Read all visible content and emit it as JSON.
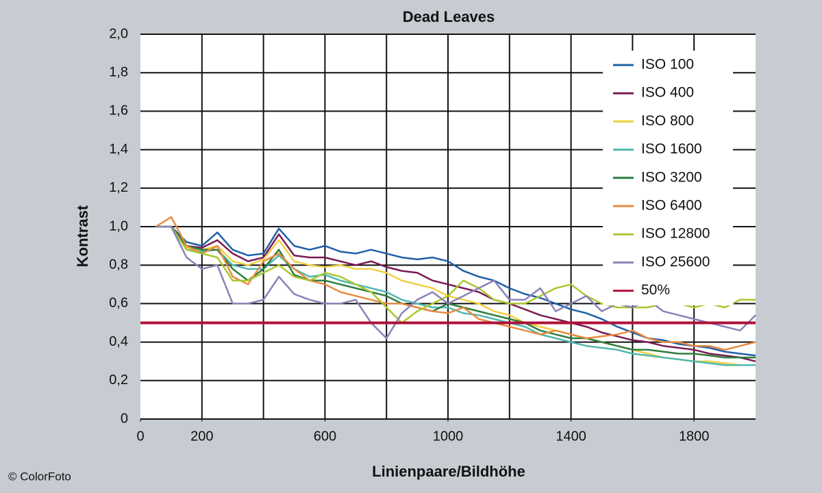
{
  "chart_data": {
    "type": "line",
    "title": "Dead Leaves",
    "xlabel": "Linienpaare/Bildhöhe",
    "ylabel": "Kontrast",
    "credit": "© ColorFoto",
    "xlim": [
      0,
      2000
    ],
    "ylim": [
      0,
      2
    ],
    "xticks": [
      0,
      200,
      600,
      1000,
      1400,
      1800
    ],
    "xgrid": [
      200,
      400,
      600,
      800,
      1000,
      1200,
      1400,
      1600,
      1800
    ],
    "yticks": [
      0,
      {
        "value": 0.2,
        "label": "0,2"
      },
      {
        "value": 0.4,
        "label": "0,4"
      },
      {
        "value": 0.6,
        "label": "0,6"
      },
      {
        "value": 0.8,
        "label": "0,8"
      },
      {
        "value": 1,
        "label": "1,0"
      },
      {
        "value": 1.2,
        "label": "1,2"
      },
      {
        "value": 1.4,
        "label": "1,4"
      },
      {
        "value": 1.6,
        "label": "1,6"
      },
      {
        "value": 1.8,
        "label": "1,8"
      },
      {
        "value": 2,
        "label": "2,0"
      }
    ],
    "grid": true,
    "legend": "upper right",
    "x": [
      50,
      100,
      150,
      200,
      250,
      300,
      350,
      400,
      450,
      500,
      550,
      600,
      650,
      700,
      750,
      800,
      850,
      900,
      950,
      1000,
      1050,
      1100,
      1150,
      1200,
      1250,
      1300,
      1350,
      1400,
      1450,
      1500,
      1550,
      1600,
      1650,
      1700,
      1750,
      1800,
      1850,
      1900,
      1950,
      2000
    ],
    "series": [
      {
        "name": "ISO 100",
        "color": "#1f5fa8",
        "values": [
          1.0,
          1.0,
          0.92,
          0.9,
          0.97,
          0.88,
          0.85,
          0.86,
          0.99,
          0.9,
          0.88,
          0.9,
          0.87,
          0.86,
          0.88,
          0.86,
          0.84,
          0.83,
          0.84,
          0.82,
          0.77,
          0.74,
          0.72,
          0.68,
          0.65,
          0.63,
          0.6,
          0.57,
          0.55,
          0.52,
          0.48,
          0.45,
          0.42,
          0.41,
          0.39,
          0.38,
          0.37,
          0.35,
          0.34,
          0.33
        ]
      },
      {
        "name": "ISO 400",
        "color": "#7a1a55",
        "values": [
          1.0,
          1.0,
          0.9,
          0.89,
          0.93,
          0.86,
          0.82,
          0.84,
          0.96,
          0.85,
          0.84,
          0.84,
          0.82,
          0.8,
          0.82,
          0.79,
          0.77,
          0.76,
          0.72,
          0.7,
          0.68,
          0.66,
          0.62,
          0.6,
          0.57,
          0.54,
          0.52,
          0.5,
          0.48,
          0.45,
          0.43,
          0.41,
          0.4,
          0.38,
          0.37,
          0.36,
          0.34,
          0.33,
          0.32,
          0.3
        ]
      },
      {
        "name": "ISO 800",
        "color": "#f0d040",
        "values": [
          1.0,
          1.0,
          0.89,
          0.88,
          0.9,
          0.82,
          0.8,
          0.83,
          0.93,
          0.82,
          0.8,
          0.79,
          0.8,
          0.78,
          0.78,
          0.76,
          0.72,
          0.7,
          0.68,
          0.64,
          0.62,
          0.6,
          0.56,
          0.54,
          0.5,
          0.48,
          0.46,
          0.44,
          0.42,
          0.4,
          0.38,
          0.36,
          0.34,
          0.32,
          0.31,
          0.3,
          0.3,
          0.29,
          0.28,
          0.28
        ]
      },
      {
        "name": "ISO 1600",
        "color": "#50b8b0",
        "values": [
          1.0,
          1.0,
          0.88,
          0.87,
          0.88,
          0.8,
          0.78,
          0.78,
          0.85,
          0.78,
          0.74,
          0.75,
          0.72,
          0.7,
          0.68,
          0.66,
          0.62,
          0.6,
          0.58,
          0.58,
          0.55,
          0.54,
          0.52,
          0.5,
          0.48,
          0.44,
          0.42,
          0.4,
          0.38,
          0.37,
          0.36,
          0.34,
          0.33,
          0.32,
          0.31,
          0.3,
          0.29,
          0.28,
          0.28,
          0.28
        ]
      },
      {
        "name": "ISO 3200",
        "color": "#2e7d3e",
        "values": [
          1.0,
          1.0,
          0.9,
          0.88,
          0.88,
          0.78,
          0.72,
          0.78,
          0.88,
          0.75,
          0.72,
          0.72,
          0.7,
          0.68,
          0.66,
          0.64,
          0.6,
          0.58,
          0.56,
          0.6,
          0.58,
          0.56,
          0.54,
          0.52,
          0.5,
          0.46,
          0.44,
          0.42,
          0.42,
          0.4,
          0.38,
          0.36,
          0.36,
          0.35,
          0.34,
          0.34,
          0.33,
          0.32,
          0.32,
          0.32
        ]
      },
      {
        "name": "ISO 6400",
        "color": "#e88b40",
        "values": [
          1.0,
          1.05,
          0.9,
          0.86,
          0.9,
          0.74,
          0.7,
          0.82,
          0.86,
          0.78,
          0.72,
          0.7,
          0.66,
          0.64,
          0.62,
          0.6,
          0.6,
          0.58,
          0.56,
          0.55,
          0.58,
          0.52,
          0.5,
          0.48,
          0.46,
          0.44,
          0.46,
          0.44,
          0.42,
          0.43,
          0.44,
          0.46,
          0.42,
          0.4,
          0.4,
          0.38,
          0.38,
          0.36,
          0.38,
          0.4
        ]
      },
      {
        "name": "ISO 12800",
        "color": "#a8c830",
        "values": [
          1.0,
          1.0,
          0.88,
          0.86,
          0.84,
          0.72,
          0.72,
          0.76,
          0.8,
          0.74,
          0.72,
          0.76,
          0.74,
          0.7,
          0.66,
          0.58,
          0.5,
          0.56,
          0.6,
          0.64,
          0.72,
          0.68,
          0.62,
          0.6,
          0.6,
          0.64,
          0.68,
          0.7,
          0.64,
          0.6,
          0.58,
          0.58,
          0.58,
          0.6,
          0.6,
          0.58,
          0.6,
          0.58,
          0.62,
          0.62
        ]
      },
      {
        "name": "ISO 25600",
        "color": "#8a82b8",
        "values": [
          1.0,
          1.0,
          0.84,
          0.78,
          0.8,
          0.6,
          0.6,
          0.62,
          0.74,
          0.65,
          0.62,
          0.6,
          0.6,
          0.62,
          0.5,
          0.42,
          0.55,
          0.62,
          0.66,
          0.6,
          0.64,
          0.68,
          0.72,
          0.62,
          0.62,
          0.68,
          0.56,
          0.6,
          0.64,
          0.56,
          0.6,
          0.58,
          0.62,
          0.56,
          0.54,
          0.52,
          0.5,
          0.48,
          0.46,
          0.54
        ]
      }
    ],
    "reference_line": {
      "name": "50%",
      "value": 0.5,
      "color": "#b0103a"
    }
  }
}
